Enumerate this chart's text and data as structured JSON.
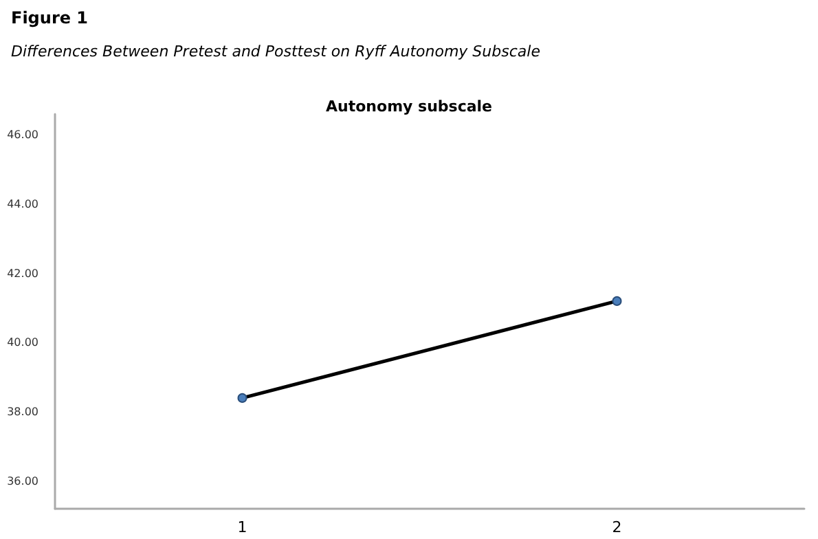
{
  "chart_data": {
    "type": "line",
    "title": "Figure 1",
    "subtitle": "Differences Between Pretest and Posttest on Ryff Autonomy Subscale",
    "annotations": [
      "Autonomy subscale"
    ],
    "categories": [
      "1",
      "2"
    ],
    "series": [
      {
        "color": "#000000",
        "colors": [
          "#4a7ebb",
          "#4a7ebb"
        ],
        "values": [
          38.4,
          41.2
        ]
      }
    ],
    "ylim": [
      35.2,
      46.6
    ],
    "yticks": [
      {
        "value": 36,
        "label": "36.00"
      },
      {
        "value": 38,
        "label": "38.00"
      },
      {
        "value": 40,
        "label": "40.00"
      },
      {
        "value": 42,
        "label": "42.00"
      },
      {
        "value": 44,
        "label": "44.00"
      },
      {
        "value": 46,
        "label": "46.00"
      }
    ],
    "marker": "circle",
    "line_style": "solid"
  }
}
